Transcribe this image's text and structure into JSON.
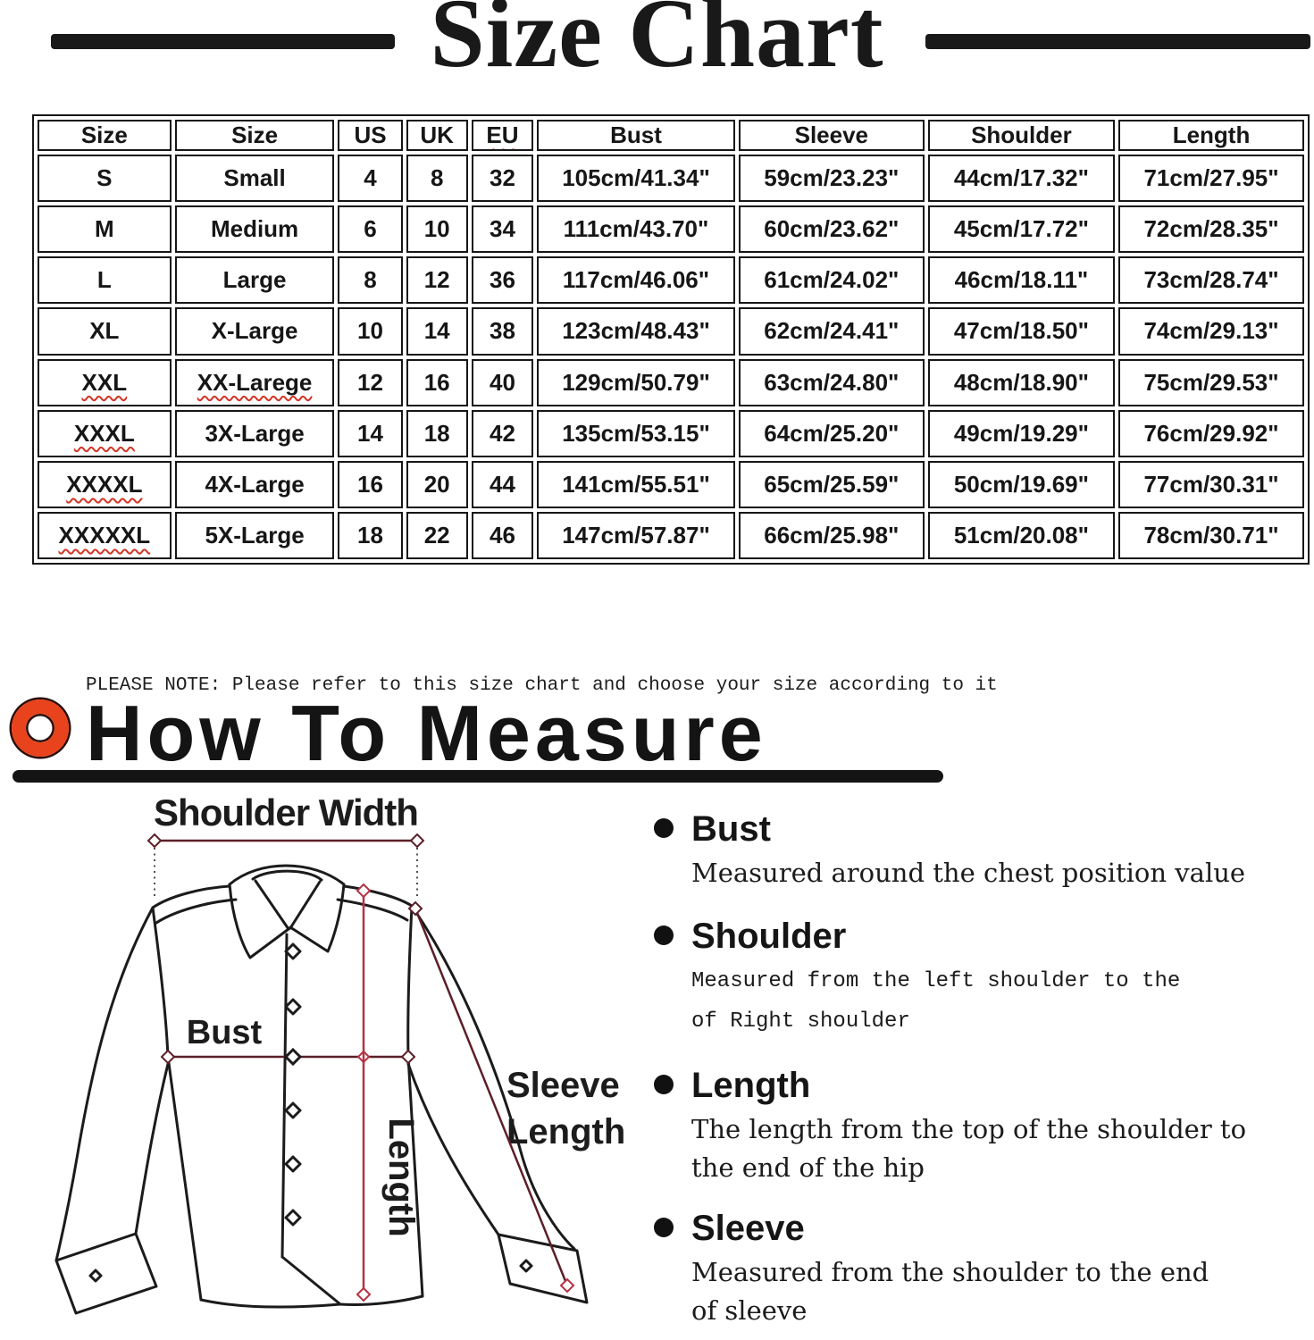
{
  "title": "Size Chart",
  "size_table": {
    "columns": [
      "size",
      "name",
      "us",
      "uk",
      "eu",
      "bust",
      "sleeve",
      "shoulder",
      "length"
    ],
    "headers": [
      {
        "label": "Size"
      },
      {
        "label": "Size"
      },
      {
        "label": "US"
      },
      {
        "label": "UK"
      },
      {
        "label": "EU",
        "wavy": true
      },
      {
        "label": "Bust"
      },
      {
        "label": "Sleeve"
      },
      {
        "label": "Shoulder"
      },
      {
        "label": "Length"
      }
    ],
    "rows": [
      {
        "size": "S",
        "name": "Small",
        "us": "4",
        "uk": "8",
        "eu": "32",
        "bust": "105cm/41.34\"",
        "sleeve": "59cm/23.23\"",
        "shoulder": "44cm/17.32\"",
        "length": "71cm/27.95\""
      },
      {
        "size": "M",
        "name": "Medium",
        "us": "6",
        "uk": "10",
        "eu": "34",
        "bust": "111cm/43.70\"",
        "sleeve": "60cm/23.62\"",
        "shoulder": "45cm/17.72\"",
        "length": "72cm/28.35\""
      },
      {
        "size": "L",
        "name": "Large",
        "us": "8",
        "uk": "12",
        "eu": "36",
        "bust": "117cm/46.06\"",
        "sleeve": "61cm/24.02\"",
        "shoulder": "46cm/18.11\"",
        "length": "73cm/28.74\""
      },
      {
        "size": "XL",
        "name": "X-Large",
        "us": "10",
        "uk": "14",
        "eu": "38",
        "bust": "123cm/48.43\"",
        "sleeve": "62cm/24.41\"",
        "shoulder": "47cm/18.50\"",
        "length": "74cm/29.13\""
      },
      {
        "size": "XXL",
        "name": "XX-Larege",
        "us": "12",
        "uk": "16",
        "eu": "40",
        "bust": "129cm/50.79\"",
        "sleeve": "63cm/24.80\"",
        "shoulder": "48cm/18.90\"",
        "length": "75cm/29.53\"",
        "wavy": [
          "size",
          "name"
        ]
      },
      {
        "size": "XXXL",
        "name": "3X-Large",
        "us": "14",
        "uk": "18",
        "eu": "42",
        "bust": "135cm/53.15\"",
        "sleeve": "64cm/25.20\"",
        "shoulder": "49cm/19.29\"",
        "length": "76cm/29.92\"",
        "wavy": [
          "size"
        ]
      },
      {
        "size": "XXXXL",
        "name": "4X-Large",
        "us": "16",
        "uk": "20",
        "eu": "44",
        "bust": "141cm/55.51\"",
        "sleeve": "65cm/25.59\"",
        "shoulder": "50cm/19.69\"",
        "length": "77cm/30.31\"",
        "wavy": [
          "size"
        ]
      },
      {
        "size": "XXXXXL",
        "name": "5X-Large",
        "us": "18",
        "uk": "22",
        "eu": "46",
        "bust": "147cm/57.87\"",
        "sleeve": "66cm/25.98\"",
        "shoulder": "51cm/20.08\"",
        "length": "78cm/30.71\"",
        "wavy": [
          "size"
        ]
      }
    ]
  },
  "note": "PLEASE NOTE: Please refer to this size chart and choose your size according to it",
  "measure": {
    "heading": "How To Measure",
    "diagram": {
      "shoulder_width_label": "Shoulder Width",
      "bust_label": "Bust",
      "length_label": "Length",
      "sleeve_length_line1": "Sleeve",
      "sleeve_length_line2": "Length"
    },
    "items": [
      {
        "term": "Bust",
        "desc": "Measured around the chest position value"
      },
      {
        "term": "Shoulder",
        "desc": "Measured from the left shoulder to the\nof Right shoulder"
      },
      {
        "term": "Length",
        "desc": "The length from the top of the shoulder to\nthe end of the hip"
      },
      {
        "term": "Sleeve",
        "desc": "Measured from the shoulder to the end\nof sleeve"
      }
    ]
  },
  "colors": {
    "accent_ring": "#e8431c",
    "wavy_underline": "#d23425",
    "measure_line": "#5c1f28",
    "length_line": "#b43343",
    "ink": "#161616"
  }
}
